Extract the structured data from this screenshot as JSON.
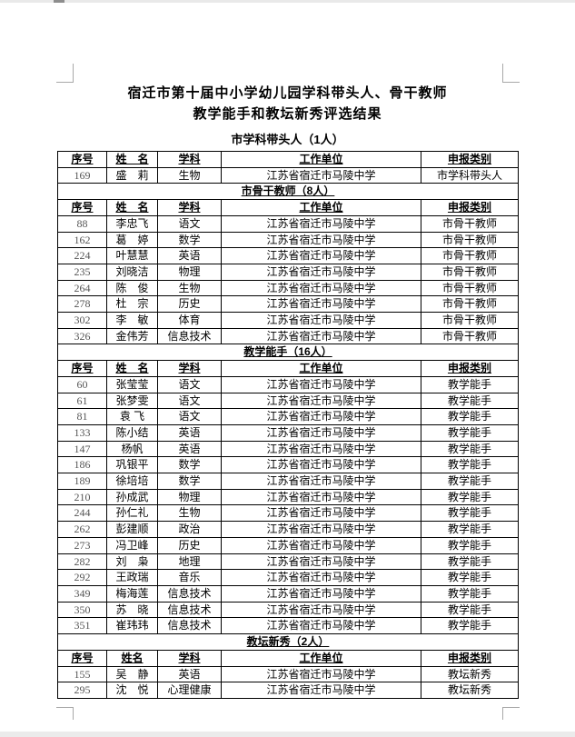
{
  "page": {
    "title_line1": "宿迁市第十届中小学幼儿园学科带头人、骨干教师",
    "title_line2": "教学能手和教坛新秀评选结果"
  },
  "table": {
    "sections": [
      {
        "heading": "市学科带头人（1人）",
        "heading_inside_table": false,
        "columns": [
          "序号",
          "姓　名",
          "学科",
          "工作单位",
          "申报类别"
        ],
        "rows": [
          [
            "169",
            "盛　莉",
            "生物",
            "江苏省宿迁市马陵中学",
            "市学科带头人"
          ]
        ]
      },
      {
        "heading": "市骨干教师（8人）",
        "heading_inside_table": true,
        "columns": [
          "序号",
          "姓　名",
          "学科",
          "工作单位",
          "申报类别"
        ],
        "rows": [
          [
            "88",
            "李忠飞",
            "语文",
            "江苏省宿迁市马陵中学",
            "市骨干教师"
          ],
          [
            "162",
            "葛　婷",
            "数学",
            "江苏省宿迁市马陵中学",
            "市骨干教师"
          ],
          [
            "224",
            "叶慧慧",
            "英语",
            "江苏省宿迁市马陵中学",
            "市骨干教师"
          ],
          [
            "235",
            "刘晓洁",
            "物理",
            "江苏省宿迁市马陵中学",
            "市骨干教师"
          ],
          [
            "264",
            "陈　俊",
            "生物",
            "江苏省宿迁市马陵中学",
            "市骨干教师"
          ],
          [
            "278",
            "杜　宗",
            "历史",
            "江苏省宿迁市马陵中学",
            "市骨干教师"
          ],
          [
            "302",
            "李　敏",
            "体育",
            "江苏省宿迁市马陵中学",
            "市骨干教师"
          ],
          [
            "326",
            "金伟芳",
            "信息技术",
            "江苏省宿迁市马陵中学",
            "市骨干教师"
          ]
        ]
      },
      {
        "heading": "教学能手（16人）",
        "heading_inside_table": true,
        "columns": [
          "序号",
          "姓　名",
          "学科",
          "工作单位",
          "申报类别"
        ],
        "rows": [
          [
            "60",
            "张莹莹",
            "语文",
            "江苏省宿迁市马陵中学",
            "教学能手"
          ],
          [
            "61",
            "张梦雯",
            "语文",
            "江苏省宿迁市马陵中学",
            "教学能手"
          ],
          [
            "81",
            "袁 飞",
            "语文",
            "江苏省宿迁市马陵中学",
            "教学能手"
          ],
          [
            "133",
            "陈小结",
            "英语",
            "江苏省宿迁市马陵中学",
            "教学能手"
          ],
          [
            "147",
            "杨帆",
            "英语",
            "江苏省宿迁市马陵中学",
            "教学能手"
          ],
          [
            "186",
            "巩银平",
            "数学",
            "江苏省宿迁市马陵中学",
            "教学能手"
          ],
          [
            "189",
            "徐培培",
            "数学",
            "江苏省宿迁市马陵中学",
            "教学能手"
          ],
          [
            "210",
            "孙成武",
            "物理",
            "江苏省宿迁市马陵中学",
            "教学能手"
          ],
          [
            "244",
            "孙仁礼",
            "生物",
            "江苏省宿迁市马陵中学",
            "教学能手"
          ],
          [
            "262",
            "彭建顺",
            "政治",
            "江苏省宿迁市马陵中学",
            "教学能手"
          ],
          [
            "273",
            "冯卫峰",
            "历史",
            "江苏省宿迁市马陵中学",
            "教学能手"
          ],
          [
            "282",
            "刘　枭",
            "地理",
            "江苏省宿迁市马陵中学",
            "教学能手"
          ],
          [
            "292",
            "王政瑞",
            "音乐",
            "江苏省宿迁市马陵中学",
            "教学能手"
          ],
          [
            "349",
            "梅海莲",
            "信息技术",
            "江苏省宿迁市马陵中学",
            "教学能手"
          ],
          [
            "350",
            "苏　晓",
            "信息技术",
            "江苏省宿迁市马陵中学",
            "教学能手"
          ],
          [
            "351",
            "崔玮玮",
            "信息技术",
            "江苏省宿迁市马陵中学",
            "教学能手"
          ]
        ]
      },
      {
        "heading": "教坛新秀（2人）",
        "heading_inside_table": true,
        "columns": [
          "序号",
          "姓名",
          "学科",
          "工作单位",
          "申报类别"
        ],
        "rows": [
          [
            "155",
            "吴　静",
            "英语",
            "江苏省宿迁市马陵中学",
            "教坛新秀"
          ],
          [
            "295",
            "沈　悦",
            "心理健康",
            "江苏省宿迁市马陵中学",
            "教坛新秀"
          ]
        ]
      }
    ]
  }
}
